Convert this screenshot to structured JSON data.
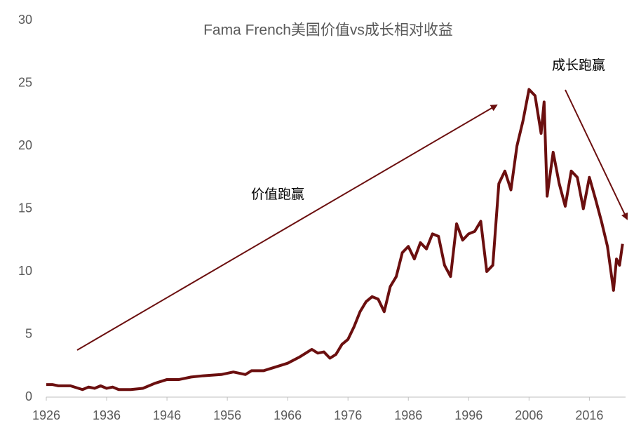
{
  "chart_data": {
    "type": "line",
    "title": "Fama French美国价值vs成长相对收益",
    "annotations": [
      "价值跑赢",
      "成长跑赢"
    ],
    "x": [
      1926,
      1927,
      1928,
      1930,
      1932,
      1933,
      1934,
      1935,
      1936,
      1937,
      1938,
      1940,
      1942,
      1944,
      1946,
      1948,
      1950,
      1952,
      1955,
      1957,
      1959,
      1960,
      1962,
      1964,
      1966,
      1968,
      1970,
      1971,
      1972,
      1973,
      1974,
      1975,
      1976,
      1977,
      1978,
      1979,
      1980,
      1981,
      1982,
      1983,
      1984,
      1985,
      1986,
      1987,
      1988,
      1989,
      1990,
      1991,
      1992,
      1993,
      1994,
      1995,
      1996,
      1997,
      1998,
      1999,
      2000,
      2001,
      2002,
      2003,
      2004,
      2005,
      2006,
      2007,
      2008,
      2008.5,
      2009,
      2010,
      2011,
      2012,
      2013,
      2014,
      2015,
      2016,
      2017,
      2018,
      2019,
      2020,
      2020.5,
      2021,
      2021.5
    ],
    "series": [
      {
        "name": "价值vs成长",
        "color": "#6b0f0f",
        "values": [
          1.0,
          1.0,
          0.9,
          0.9,
          0.6,
          0.8,
          0.7,
          0.9,
          0.7,
          0.8,
          0.6,
          0.6,
          0.7,
          1.1,
          1.4,
          1.4,
          1.6,
          1.7,
          1.8,
          2.0,
          1.8,
          2.1,
          2.1,
          2.4,
          2.7,
          3.2,
          3.8,
          3.5,
          3.6,
          3.1,
          3.4,
          4.2,
          4.6,
          5.6,
          6.8,
          7.6,
          8.0,
          7.8,
          6.8,
          8.8,
          9.6,
          11.5,
          12.0,
          11.0,
          12.3,
          11.8,
          13.0,
          12.8,
          10.5,
          9.6,
          13.8,
          12.5,
          13.0,
          13.2,
          14.0,
          10.0,
          10.5,
          17.0,
          18.0,
          16.5,
          20.0,
          22.0,
          24.5,
          24.0,
          21.0,
          23.5,
          16.0,
          19.5,
          17.0,
          15.2,
          18.0,
          17.5,
          15.0,
          17.5,
          15.8,
          14.0,
          12.0,
          8.5,
          11.0,
          10.5,
          12.2
        ]
      }
    ],
    "xlim": [
      1926,
      2022
    ],
    "xticks": [
      1926,
      1936,
      1946,
      1956,
      1966,
      1976,
      1986,
      1996,
      2006,
      2016
    ],
    "ylim": [
      0,
      30
    ],
    "yticks": [
      0,
      5,
      10,
      15,
      20,
      25,
      30
    ],
    "grid": false
  }
}
